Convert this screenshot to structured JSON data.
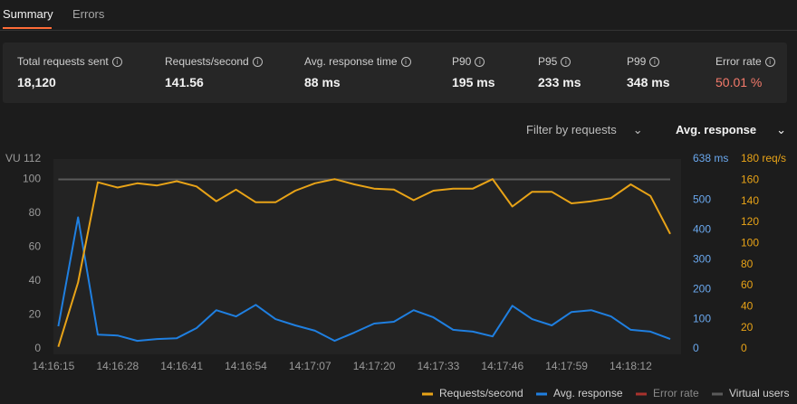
{
  "tabs": [
    "Summary",
    "Errors"
  ],
  "stats": [
    {
      "label": "Total requests sent",
      "value": "18,120"
    },
    {
      "label": "Requests/second",
      "value": "141.56"
    },
    {
      "label": "Avg. response time",
      "value": "88 ms"
    },
    {
      "label": "P90",
      "value": "195 ms"
    },
    {
      "label": "P95",
      "value": "233 ms"
    },
    {
      "label": "P99",
      "value": "348 ms"
    },
    {
      "label": "Error rate",
      "value": "50.01 %"
    }
  ],
  "filters": [
    "Filter by requests",
    "Avg. response"
  ],
  "chart_data": {
    "type": "line",
    "y_title": "VU 112",
    "y2_title": "638 ms",
    "y3_title": "180 req/s",
    "x": [
      "14:16:16",
      "14:16:20",
      "14:16:24",
      "14:16:28",
      "14:16:32",
      "14:16:36",
      "14:16:40",
      "14:16:44",
      "14:16:48",
      "14:16:52",
      "14:16:56",
      "14:17:00",
      "14:17:04",
      "14:17:08",
      "14:17:12",
      "14:17:16",
      "14:17:20",
      "14:17:24",
      "14:17:28",
      "14:17:32",
      "14:17:36",
      "14:17:40",
      "14:17:44",
      "14:17:48",
      "14:17:52",
      "14:17:56",
      "14:18:00",
      "14:18:04",
      "14:18:08",
      "14:18:12",
      "14:18:16",
      "14:18:20"
    ],
    "xlim": [
      "14:16:15",
      "14:18:20"
    ],
    "xticks": [
      "14:16:15",
      "14:16:28",
      "14:16:41",
      "14:16:54",
      "14:17:07",
      "14:17:20",
      "14:17:33",
      "14:17:46",
      "14:17:59",
      "14:18:12"
    ],
    "ylim": [
      0,
      112
    ],
    "yticks": [
      0,
      20,
      40,
      60,
      80,
      100
    ],
    "y2lim": [
      0,
      638
    ],
    "y2ticks": [
      0,
      100,
      200,
      300,
      400,
      500
    ],
    "y3lim": [
      0,
      180
    ],
    "y3ticks": [
      0,
      20,
      40,
      60,
      80,
      100,
      120,
      140,
      160
    ],
    "series": [
      {
        "name": "Requests/second",
        "color": "#e8a317",
        "axis": "y3",
        "values": [
          2,
          63,
          158,
          153,
          157,
          155,
          159,
          154,
          140,
          151,
          139,
          139,
          150,
          157,
          161,
          156,
          152,
          151,
          141,
          150,
          152,
          152,
          161,
          135,
          149,
          149,
          138,
          140,
          143,
          156,
          145,
          109
        ]
      },
      {
        "name": "Avg. response",
        "color": "#1f7fe0",
        "axis": "y2",
        "values": [
          76,
          442,
          48,
          45,
          27,
          33,
          36,
          70,
          130,
          109,
          148,
          100,
          79,
          61,
          27,
          55,
          85,
          91,
          130,
          106,
          64,
          58,
          42,
          145,
          100,
          79,
          124,
          130,
          109,
          64,
          58,
          33
        ]
      },
      {
        "name": "Error rate",
        "color": "#a8322d",
        "axis": "y",
        "hidden": true
      },
      {
        "name": "Virtual users",
        "color": "#5a5a5a",
        "axis": "y",
        "values": [
          100,
          100,
          100,
          100,
          100,
          100,
          100,
          100,
          100,
          100,
          100,
          100,
          100,
          100,
          100,
          100,
          100,
          100,
          100,
          100,
          100,
          100,
          100,
          100,
          100,
          100,
          100,
          100,
          100,
          100,
          100,
          100
        ]
      }
    ]
  }
}
